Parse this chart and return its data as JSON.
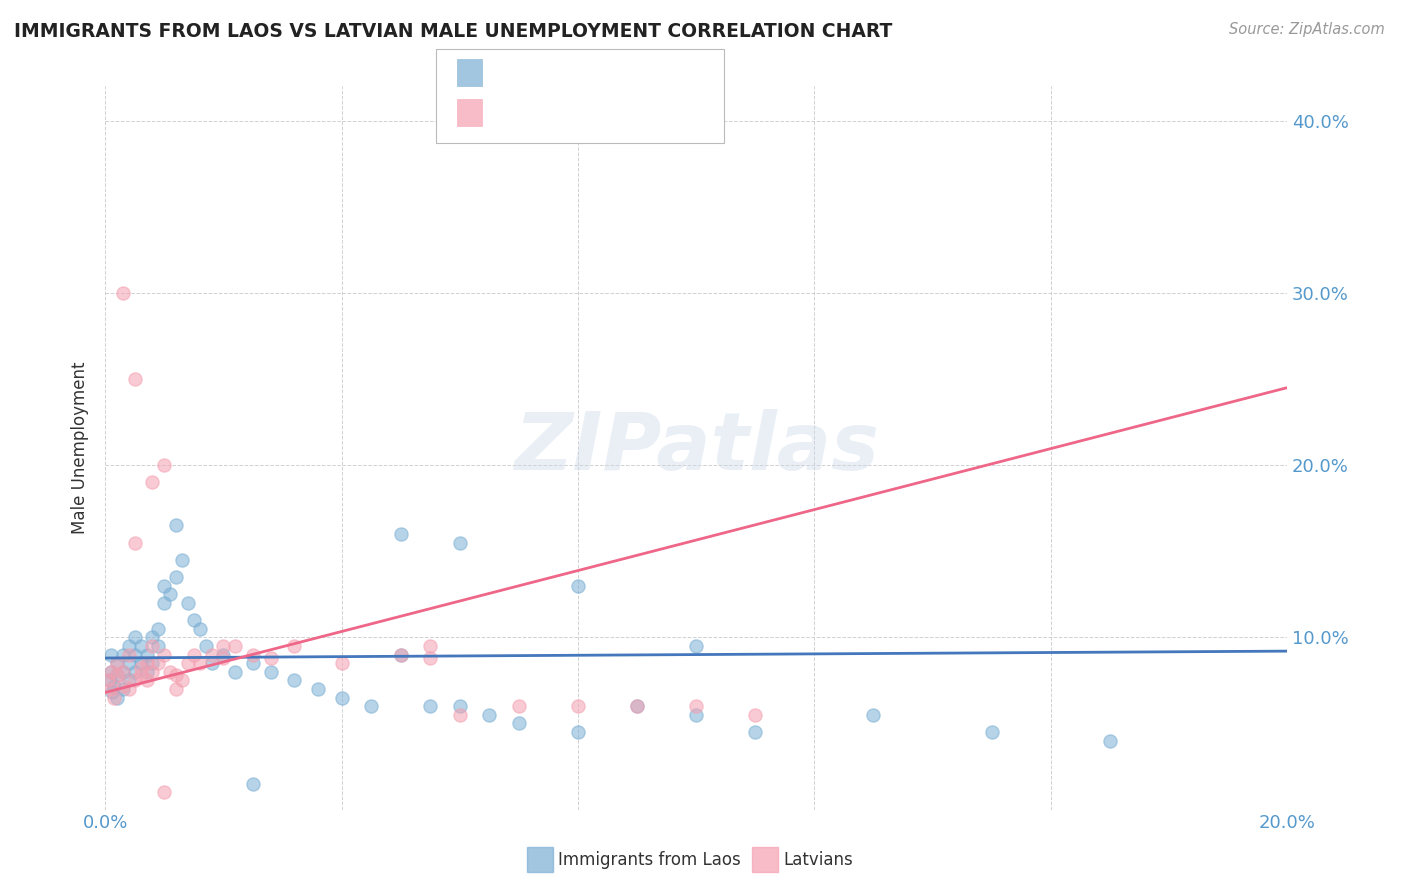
{
  "title": "IMMIGRANTS FROM LAOS VS LATVIAN MALE UNEMPLOYMENT CORRELATION CHART",
  "source": "Source: ZipAtlas.com",
  "ylabel": "Male Unemployment",
  "xlim": [
    0.0,
    0.2
  ],
  "ylim": [
    0.0,
    0.42
  ],
  "blue_color": "#7BAFD4",
  "pink_color": "#F4A0B0",
  "blue_edge": "#7BAFD4",
  "pink_edge": "#F4A0B0",
  "legend_blue": "Immigrants from Laos",
  "legend_pink": "Latvians",
  "blue_line_color": "#4477BB",
  "pink_line_color": "#EE6688",
  "blue_x": [
    0.0008,
    0.001,
    0.001,
    0.0012,
    0.0015,
    0.002,
    0.002,
    0.002,
    0.003,
    0.003,
    0.003,
    0.004,
    0.004,
    0.004,
    0.005,
    0.005,
    0.005,
    0.006,
    0.006,
    0.007,
    0.007,
    0.008,
    0.008,
    0.009,
    0.009,
    0.01,
    0.01,
    0.011,
    0.012,
    0.013,
    0.014,
    0.015,
    0.016,
    0.017,
    0.018,
    0.02,
    0.022,
    0.025,
    0.028,
    0.032,
    0.036,
    0.04,
    0.045,
    0.05,
    0.055,
    0.06,
    0.065,
    0.07,
    0.08,
    0.09,
    0.1,
    0.11,
    0.13,
    0.05,
    0.06,
    0.08,
    0.1,
    0.15,
    0.17,
    0.012,
    0.025
  ],
  "blue_y": [
    0.075,
    0.08,
    0.09,
    0.068,
    0.072,
    0.078,
    0.085,
    0.065,
    0.07,
    0.08,
    0.09,
    0.075,
    0.085,
    0.095,
    0.08,
    0.09,
    0.1,
    0.085,
    0.095,
    0.08,
    0.09,
    0.1,
    0.085,
    0.095,
    0.105,
    0.13,
    0.12,
    0.125,
    0.135,
    0.145,
    0.12,
    0.11,
    0.105,
    0.095,
    0.085,
    0.09,
    0.08,
    0.085,
    0.08,
    0.075,
    0.07,
    0.065,
    0.06,
    0.09,
    0.06,
    0.06,
    0.055,
    0.05,
    0.045,
    0.06,
    0.055,
    0.045,
    0.055,
    0.16,
    0.155,
    0.13,
    0.095,
    0.045,
    0.04,
    0.165,
    0.015
  ],
  "pink_x": [
    0.0005,
    0.001,
    0.001,
    0.0015,
    0.002,
    0.002,
    0.003,
    0.003,
    0.004,
    0.004,
    0.005,
    0.005,
    0.006,
    0.006,
    0.007,
    0.007,
    0.008,
    0.008,
    0.009,
    0.01,
    0.01,
    0.011,
    0.012,
    0.013,
    0.014,
    0.015,
    0.016,
    0.018,
    0.02,
    0.022,
    0.025,
    0.028,
    0.032,
    0.04,
    0.05,
    0.06,
    0.07,
    0.08,
    0.09,
    0.1,
    0.11,
    0.005,
    0.012,
    0.055,
    0.055,
    0.02,
    0.008,
    0.01,
    0.003
  ],
  "pink_y": [
    0.075,
    0.07,
    0.08,
    0.065,
    0.078,
    0.085,
    0.072,
    0.08,
    0.07,
    0.09,
    0.075,
    0.155,
    0.082,
    0.078,
    0.075,
    0.085,
    0.08,
    0.19,
    0.085,
    0.09,
    0.2,
    0.08,
    0.078,
    0.075,
    0.085,
    0.09,
    0.085,
    0.09,
    0.088,
    0.095,
    0.09,
    0.088,
    0.095,
    0.085,
    0.09,
    0.055,
    0.06,
    0.06,
    0.06,
    0.06,
    0.055,
    0.25,
    0.07,
    0.095,
    0.088,
    0.095,
    0.095,
    0.01,
    0.3
  ],
  "blue_line_x": [
    0.0,
    0.2
  ],
  "blue_line_y": [
    0.088,
    0.092
  ],
  "pink_line_x": [
    0.0,
    0.2
  ],
  "pink_line_y": [
    0.068,
    0.245
  ],
  "grid_color": "#CCCCCC",
  "tick_color": "#5599CC",
  "title_color": "#222222",
  "source_color": "#999999",
  "watermark": "ZIPatlas"
}
